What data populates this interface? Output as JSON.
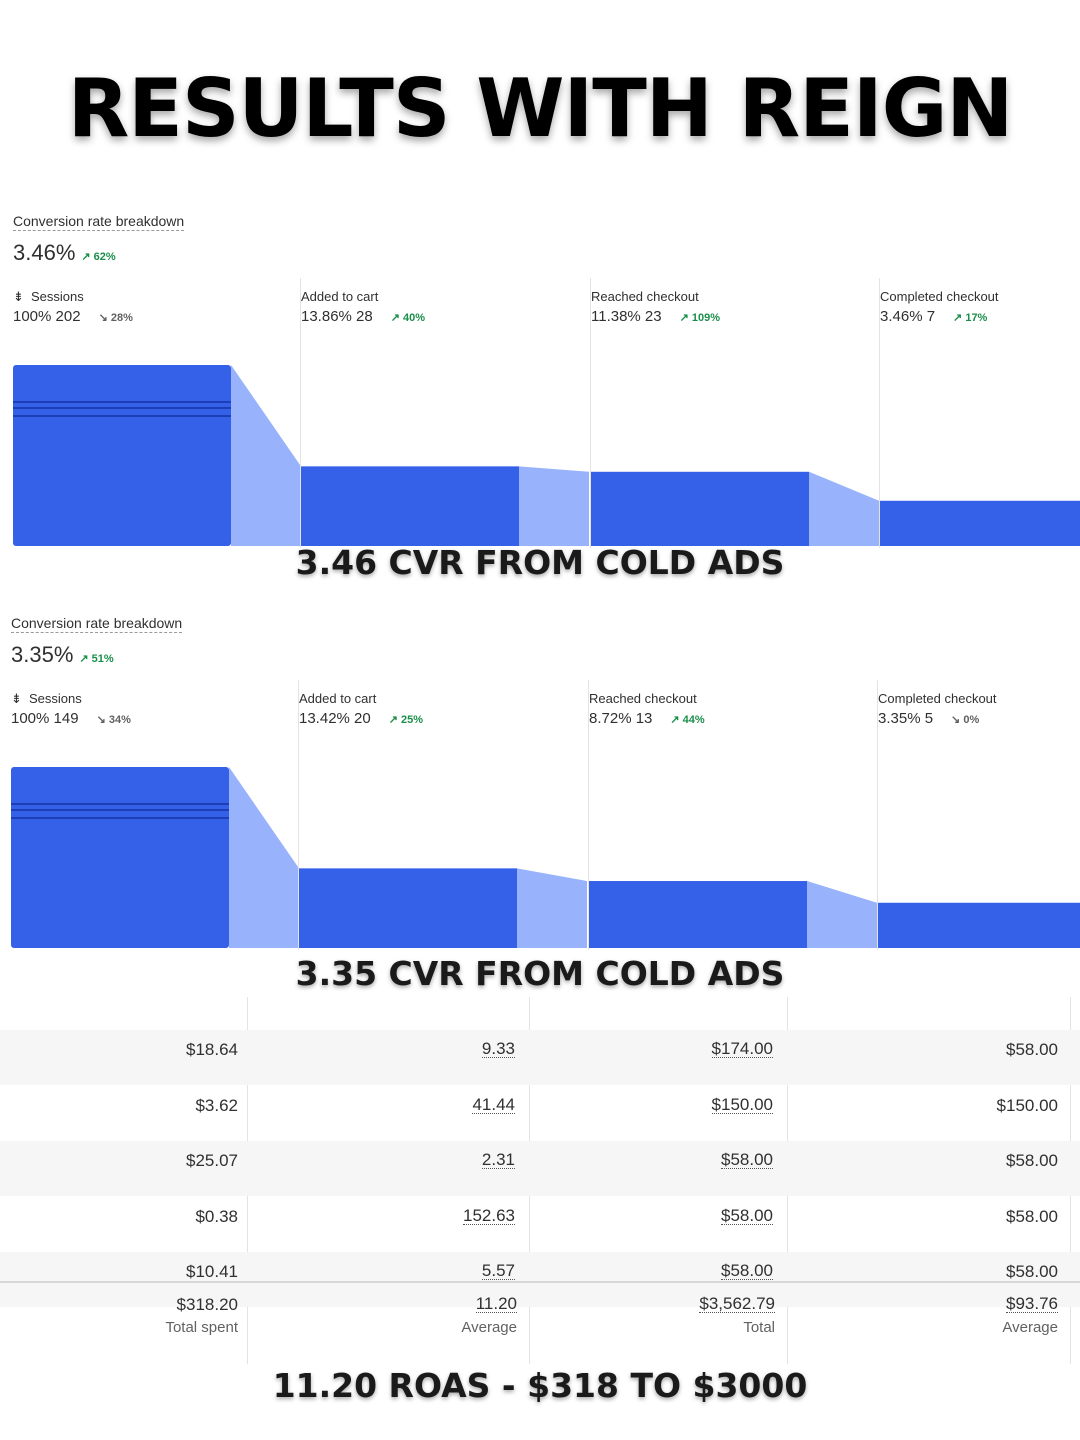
{
  "headline": "RESULTS WITH REIGN",
  "panels": [
    {
      "title": "Conversion rate breakdown",
      "total": "3.46%",
      "total_trend": "↗ 62%",
      "stages": [
        {
          "label": "Sessions",
          "value": "100% 202",
          "trend": "↘ 28%",
          "dir": "down",
          "level": 1.0
        },
        {
          "label": "Added to cart",
          "value": "13.86% 28",
          "trend": "↗ 40%",
          "dir": "up",
          "level": 0.44
        },
        {
          "label": "Reached checkout",
          "value": "11.38% 23",
          "trend": "↗ 109%",
          "dir": "up",
          "level": 0.41
        },
        {
          "label": "Completed checkout",
          "value": "3.46% 7",
          "trend": "↗ 17%",
          "dir": "up",
          "level": 0.25
        }
      ],
      "caption": "3.46 CVR FROM COLD ADS"
    },
    {
      "title": "Conversion rate breakdown",
      "total": "3.35%",
      "total_trend": "↗ 51%",
      "stages": [
        {
          "label": "Sessions",
          "value": "100% 149",
          "trend": "↘ 34%",
          "dir": "down",
          "level": 1.0
        },
        {
          "label": "Added to cart",
          "value": "13.42% 20",
          "trend": "↗ 25%",
          "dir": "up",
          "level": 0.44
        },
        {
          "label": "Reached checkout",
          "value": "8.72% 13",
          "trend": "↗ 44%",
          "dir": "up",
          "level": 0.37
        },
        {
          "label": "Completed checkout",
          "value": "3.35% 5",
          "trend": "↘ 0%",
          "dir": "down",
          "level": 0.25
        }
      ],
      "caption": "3.35 CVR FROM COLD ADS"
    }
  ],
  "table": {
    "rows": [
      [
        "$18.64",
        "9.33",
        "$174.00",
        "$58.00"
      ],
      [
        "$3.62",
        "41.44",
        "$150.00",
        "$150.00"
      ],
      [
        "$25.07",
        "2.31",
        "$58.00",
        "$58.00"
      ],
      [
        "$0.38",
        "152.63",
        "$58.00",
        "$58.00"
      ],
      [
        "$10.41",
        "5.57",
        "$58.00",
        "$58.00"
      ]
    ],
    "totals": [
      "$318.20",
      "11.20",
      "$3,562.79",
      "$93.76"
    ],
    "total_labels": [
      "Total spent",
      "Average",
      "Total",
      "Average"
    ]
  },
  "caption_bottom": "11.20 ROAS - $318 TO $3000",
  "colors": {
    "bar": "#3560e8",
    "bar_light": "#98b2fb",
    "bar_dark": "#1c3fb8"
  }
}
